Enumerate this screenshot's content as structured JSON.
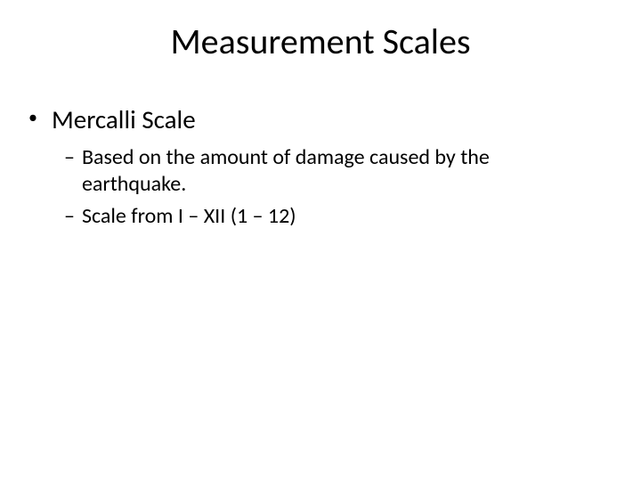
{
  "slide": {
    "title": "Measurement Scales",
    "bullet1": "Mercalli Scale",
    "sub1": "Based on the amount of damage caused by the earthquake.",
    "sub2": "Scale from I – XII (1 – 12)",
    "background_color": "#ffffff",
    "text_color": "#000000",
    "title_fontsize": 40,
    "bullet_l1_fontsize": 29,
    "bullet_l2_fontsize": 24,
    "font_family": "Calibri, Arial, sans-serif"
  }
}
